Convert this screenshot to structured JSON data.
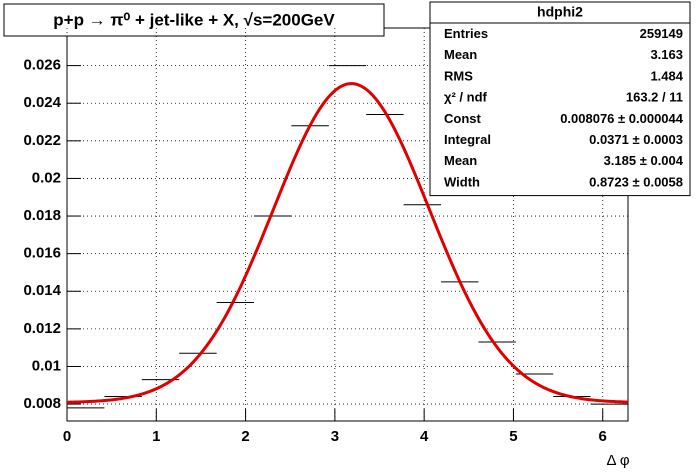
{
  "chart_data": {
    "type": "histogram",
    "title": "p+p → π⁰ + jet-like + X,  √s=200GeV",
    "x_label": "Δ φ",
    "bins": [
      0,
      0.419,
      0.838,
      1.257,
      1.676,
      2.094,
      2.513,
      2.932,
      3.351,
      3.77,
      4.189,
      4.608,
      5.027,
      5.445,
      5.864,
      6.283
    ],
    "values": [
      0.0078,
      0.0084,
      0.0093,
      0.0107,
      0.0134,
      0.018,
      0.0228,
      0.026,
      0.0234,
      0.0186,
      0.0145,
      0.0113,
      0.0096,
      0.0084,
      0.008
    ],
    "color": "#000000",
    "fit_color": "#e00000",
    "xlim": [
      0,
      6.283
    ],
    "ylim": [
      0.0071,
      0.028
    ],
    "xticks": [
      0,
      1,
      2,
      3,
      4,
      5,
      6
    ],
    "yticks": [
      0.008,
      0.01,
      0.012,
      0.014,
      0.016,
      0.018,
      0.02,
      0.022,
      0.024,
      0.026
    ],
    "grid": true,
    "stats": {
      "name": "hdphi2",
      "rows": [
        {
          "label": "Entries",
          "value": "259149"
        },
        {
          "label": "Mean",
          "value": "3.163"
        },
        {
          "label": "RMS",
          "value": "1.484"
        },
        {
          "label": "χ² / ndf",
          "value": "163.2 / 11"
        },
        {
          "label": "Const",
          "value": "0.008076 ± 0.000044"
        },
        {
          "label": "Integral",
          "value": "0.0371 ± 0.0003"
        },
        {
          "label": "Mean",
          "value": "3.185 ± 0.004"
        },
        {
          "label": "Width",
          "value": "0.8723 ± 0.0058"
        }
      ]
    }
  }
}
